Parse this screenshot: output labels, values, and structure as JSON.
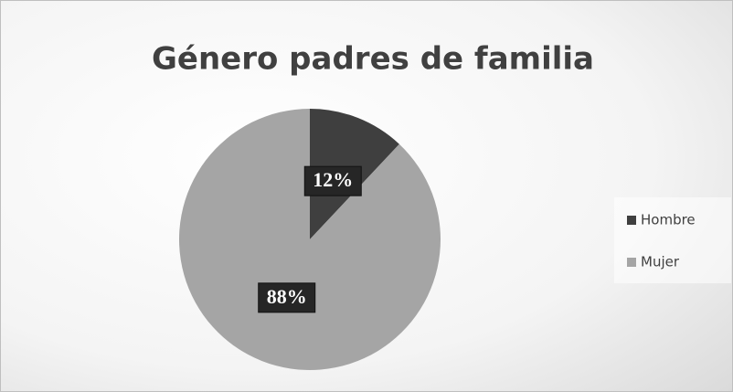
{
  "chart_data": {
    "type": "pie",
    "title": "Género padres de familia",
    "categories": [
      "Hombre",
      "Mujer"
    ],
    "values": [
      12,
      88
    ],
    "value_labels": [
      "12%",
      "88%"
    ],
    "colors": [
      "#3f3f3f",
      "#a5a5a5"
    ],
    "legend": "right"
  }
}
